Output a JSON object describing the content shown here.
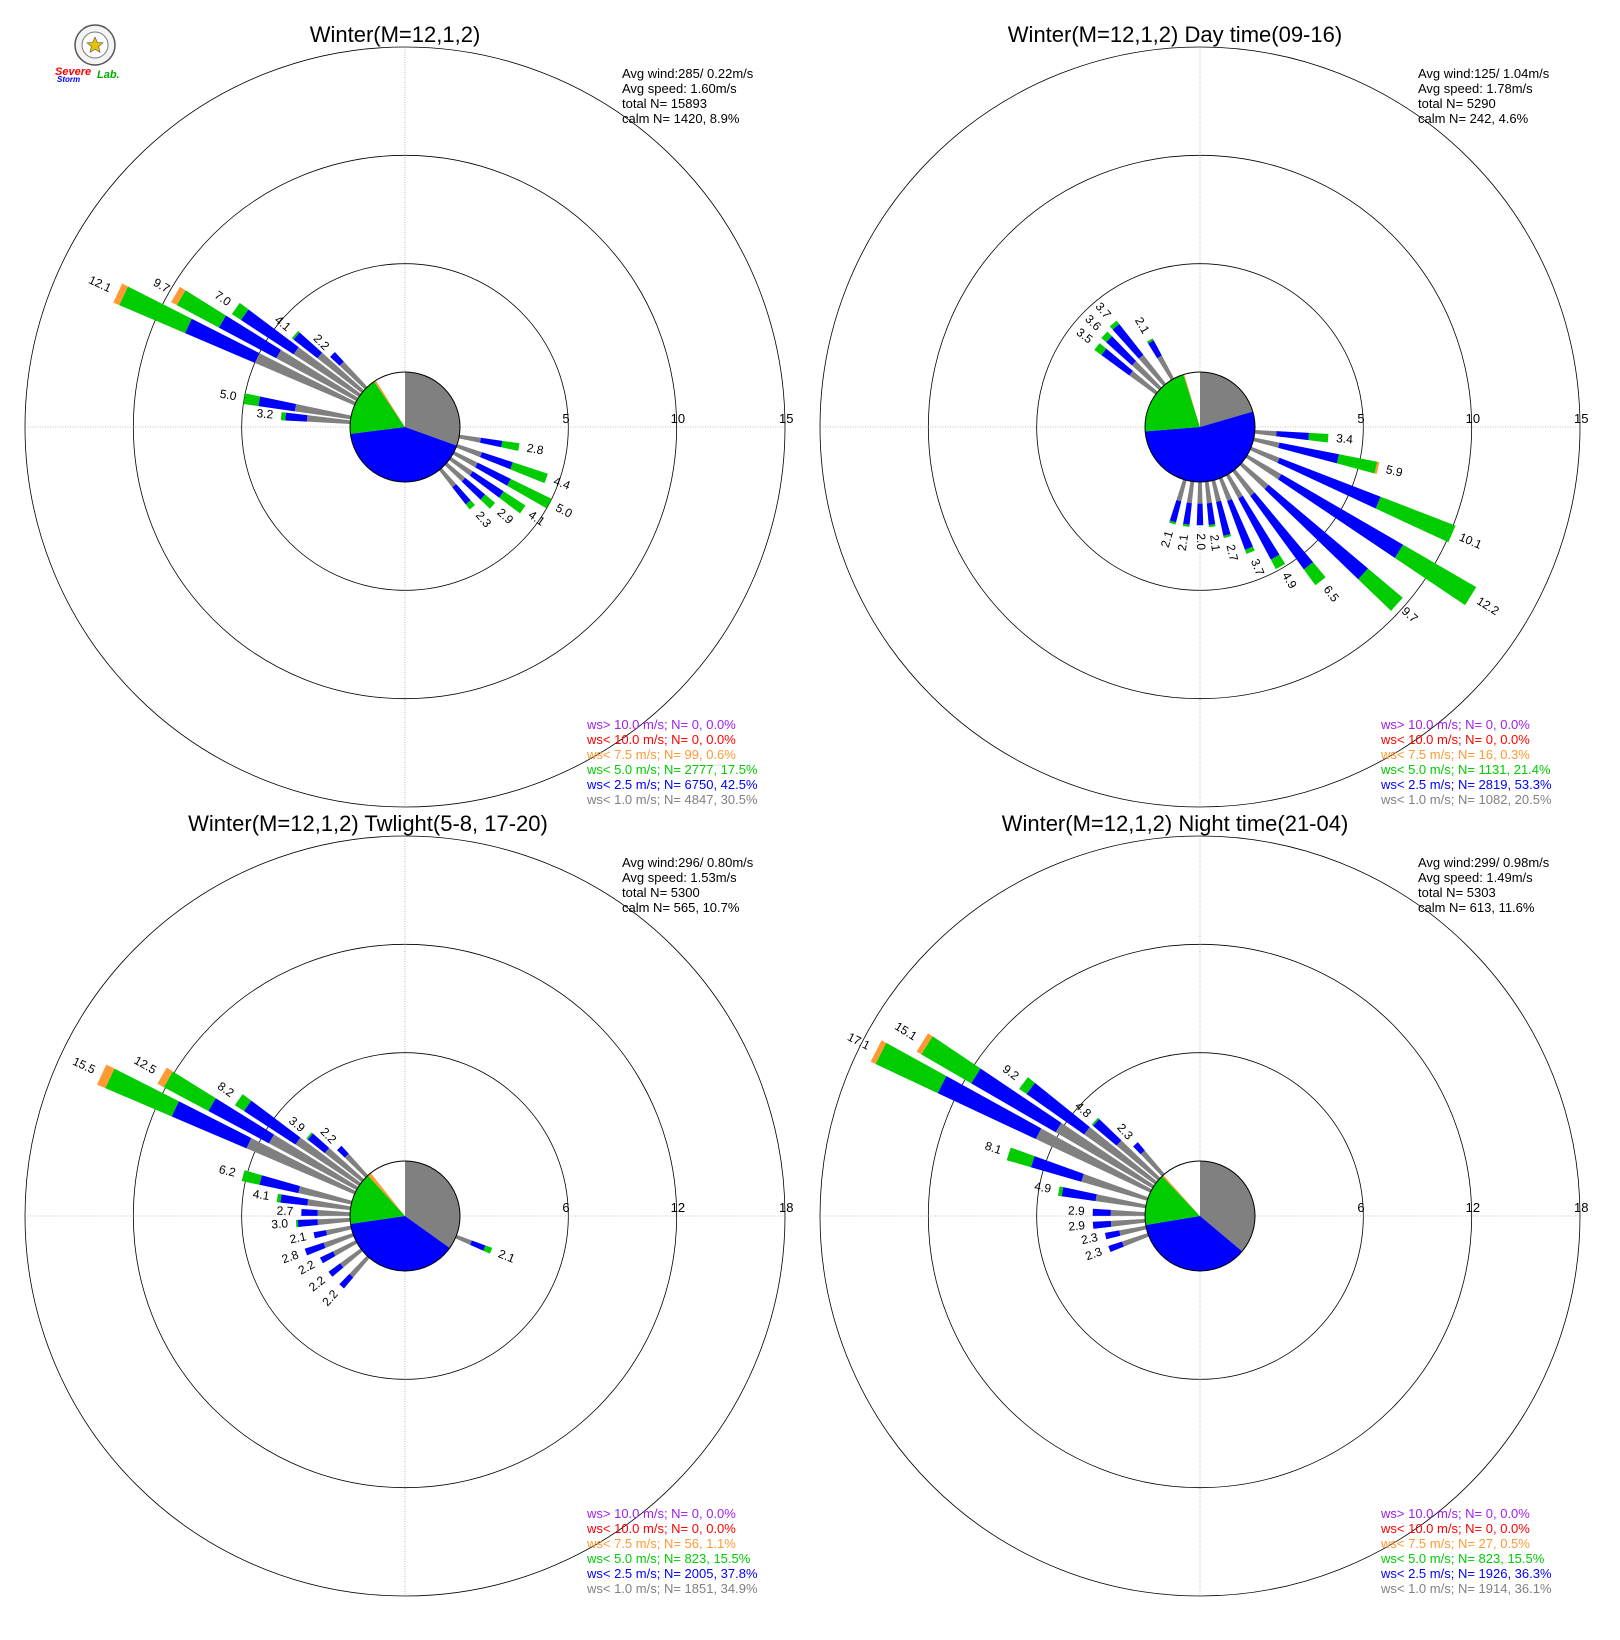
{
  "logo": {
    "line1": "Severe",
    "line2": "Storm",
    "line3": "Lab."
  },
  "colors": {
    "gray": "#808080",
    "blue": "#0000ff",
    "green": "#00cc00",
    "orange": "#ff9933",
    "red": "#ff0000",
    "purple": "#a020f0"
  },
  "chart_data": [
    {
      "type": "polar-bar",
      "title": "Winter(M=12,1,2)",
      "rlim": [
        0,
        15
      ],
      "rticks": [
        5,
        10,
        15
      ],
      "stats": {
        "avg_wind": "Avg wind:285/ 0.22m/s",
        "avg_speed": "Avg speed: 1.60m/s",
        "total": "total N=       15893",
        "calm": "calm N=   1420,   8.9%"
      },
      "legend": [
        "ws> 10.0 m/s; N=     0,  0.0%",
        "ws< 10.0 m/s; N=     0,  0.0%",
        "ws<  7.5 m/s; N=    99,  0.6%",
        "ws<  5.0 m/s; N=  2777, 17.5%",
        "ws<  2.5 m/s; N=  6750, 42.5%",
        "ws<  1.0 m/s; N=  4847, 30.5%"
      ],
      "pie": [
        30.5,
        42.5,
        17.5,
        0.6,
        0.0,
        8.9
      ],
      "directions": [
        {
          "deg": 295,
          "total": 12.1,
          "parts": [
            5.0,
            3.5,
            3.3,
            0.3
          ]
        },
        {
          "deg": 300,
          "total": 9.7,
          "parts": [
            4.2,
            3.0,
            2.2,
            0.3
          ]
        },
        {
          "deg": 305,
          "total": 7.0,
          "parts": [
            3.6,
            2.9,
            0.5,
            0.0
          ]
        },
        {
          "deg": 310,
          "total": 4.1,
          "parts": [
            2.6,
            1.4,
            0.1,
            0.0
          ]
        },
        {
          "deg": 315,
          "total": 2.2,
          "parts": [
            1.6,
            0.6,
            0.0,
            0.0
          ]
        },
        {
          "deg": 280,
          "total": 5.0,
          "parts": [
            2.6,
            1.7,
            0.7,
            0.0
          ]
        },
        {
          "deg": 275,
          "total": 3.2,
          "parts": [
            2.0,
            1.0,
            0.2,
            0.0
          ]
        },
        {
          "deg": 100,
          "total": 2.8,
          "parts": [
            1.0,
            1.0,
            0.8,
            0.0
          ]
        },
        {
          "deg": 110,
          "total": 4.4,
          "parts": [
            1.2,
            1.5,
            1.7,
            0.0
          ]
        },
        {
          "deg": 118,
          "total": 5.0,
          "parts": [
            1.2,
            1.7,
            2.1,
            0.0
          ]
        },
        {
          "deg": 125,
          "total": 4.1,
          "parts": [
            1.2,
            1.7,
            1.2,
            0.0
          ]
        },
        {
          "deg": 132,
          "total": 2.9,
          "parts": [
            1.1,
            1.2,
            0.6,
            0.0
          ]
        },
        {
          "deg": 140,
          "total": 2.3,
          "parts": [
            1.0,
            1.0,
            0.3,
            0.0
          ]
        }
      ]
    },
    {
      "type": "polar-bar",
      "title": "Winter(M=12,1,2) Day time(09-16)",
      "rlim": [
        0,
        15
      ],
      "rticks": [
        5,
        10,
        15
      ],
      "stats": {
        "avg_wind": "Avg wind:125/ 1.04m/s",
        "avg_speed": "Avg speed: 1.78m/s",
        "total": "total N=       5290",
        "calm": "calm N=    242,   4.6%"
      },
      "legend": [
        "ws> 10.0 m/s; N=     0,  0.0%",
        "ws< 10.0 m/s; N=     0,  0.0%",
        "ws<  7.5 m/s; N=    16,  0.3%",
        "ws<  5.0 m/s; N=  1131, 21.4%",
        "ws<  2.5 m/s; N=  2819, 53.3%",
        "ws<  1.0 m/s; N=  1082, 20.5%"
      ],
      "pie": [
        20.5,
        53.3,
        21.4,
        0.3,
        0.0,
        4.6
      ],
      "directions": [
        {
          "deg": 95,
          "total": 3.4,
          "parts": [
            1.0,
            1.5,
            0.9,
            0.0
          ]
        },
        {
          "deg": 103,
          "total": 5.9,
          "parts": [
            1.2,
            2.8,
            1.8,
            0.1
          ]
        },
        {
          "deg": 113,
          "total": 10.1,
          "parts": [
            1.4,
            5.0,
            3.7,
            0.0
          ]
        },
        {
          "deg": 122,
          "total": 12.2,
          "parts": [
            1.8,
            6.5,
            3.9,
            0.0
          ]
        },
        {
          "deg": 132,
          "total": 9.7,
          "parts": [
            1.6,
            6.0,
            2.1,
            0.0
          ]
        },
        {
          "deg": 142,
          "total": 6.5,
          "parts": [
            1.4,
            4.2,
            0.9,
            0.0
          ]
        },
        {
          "deg": 150,
          "total": 4.9,
          "parts": [
            1.2,
            3.2,
            0.5,
            0.0
          ]
        },
        {
          "deg": 158,
          "total": 3.7,
          "parts": [
            1.1,
            2.4,
            0.2,
            0.0
          ]
        },
        {
          "deg": 166,
          "total": 2.7,
          "parts": [
            1.0,
            1.6,
            0.1,
            0.0
          ]
        },
        {
          "deg": 173,
          "total": 2.1,
          "parts": [
            1.0,
            1.0,
            0.1,
            0.0
          ]
        },
        {
          "deg": 180,
          "total": 2.0,
          "parts": [
            1.0,
            1.0,
            0.0,
            0.0
          ]
        },
        {
          "deg": 188,
          "total": 2.1,
          "parts": [
            1.0,
            1.0,
            0.1,
            0.0
          ]
        },
        {
          "deg": 196,
          "total": 2.1,
          "parts": [
            1.0,
            1.0,
            0.1,
            0.0
          ]
        },
        {
          "deg": 320,
          "total": 3.7,
          "parts": [
            1.7,
            1.8,
            0.2,
            0.0
          ]
        },
        {
          "deg": 314,
          "total": 3.6,
          "parts": [
            1.7,
            1.6,
            0.3,
            0.0
          ]
        },
        {
          "deg": 308,
          "total": 3.5,
          "parts": [
            1.5,
            1.6,
            0.4,
            0.0
          ]
        },
        {
          "deg": 330,
          "total": 2.1,
          "parts": [
            1.2,
            0.8,
            0.1,
            0.0
          ]
        }
      ]
    },
    {
      "type": "polar-bar",
      "title": "Winter(M=12,1,2) Twlight(5-8, 17-20)",
      "rlim": [
        0,
        18
      ],
      "rticks": [
        6,
        12,
        18
      ],
      "stats": {
        "avg_wind": "Avg wind:296/ 0.80m/s",
        "avg_speed": "Avg speed: 1.53m/s",
        "total": "total N=       5300",
        "calm": "calm N=    565,  10.7%"
      },
      "legend": [
        "ws> 10.0 m/s; N=     0,  0.0%",
        "ws< 10.0 m/s; N=     0,  0.0%",
        "ws<  7.5 m/s; N=    56,  1.1%",
        "ws<  5.0 m/s; N=   823, 15.5%",
        "ws<  2.5 m/s; N=  2005, 37.8%",
        "ws<  1.0 m/s; N=  1851, 34.9%"
      ],
      "pie": [
        34.9,
        37.8,
        15.5,
        1.1,
        0.0,
        10.7
      ],
      "directions": [
        {
          "deg": 295,
          "total": 15.5,
          "parts": [
            6.5,
            4.5,
            4.0,
            0.5
          ]
        },
        {
          "deg": 300,
          "total": 12.5,
          "parts": [
            5.5,
            3.8,
            2.8,
            0.4
          ]
        },
        {
          "deg": 305,
          "total": 8.2,
          "parts": [
            4.2,
            3.4,
            0.6,
            0.0
          ]
        },
        {
          "deg": 310,
          "total": 3.9,
          "parts": [
            2.6,
            1.2,
            0.1,
            0.0
          ]
        },
        {
          "deg": 316,
          "total": 2.2,
          "parts": [
            1.6,
            0.6,
            0.0,
            0.0
          ]
        },
        {
          "deg": 284,
          "total": 6.2,
          "parts": [
            3.0,
            2.2,
            1.0,
            0.0
          ]
        },
        {
          "deg": 278,
          "total": 4.1,
          "parts": [
            2.4,
            1.5,
            0.2,
            0.0
          ]
        },
        {
          "deg": 272,
          "total": 2.7,
          "parts": [
            1.8,
            0.9,
            0.0,
            0.0
          ]
        },
        {
          "deg": 266,
          "total": 3.0,
          "parts": [
            1.8,
            1.1,
            0.1,
            0.0
          ]
        },
        {
          "deg": 258,
          "total": 2.1,
          "parts": [
            1.4,
            0.7,
            0.0,
            0.0
          ]
        },
        {
          "deg": 250,
          "total": 2.8,
          "parts": [
            1.7,
            1.1,
            0.0,
            0.0
          ]
        },
        {
          "deg": 242,
          "total": 2.2,
          "parts": [
            1.4,
            0.8,
            0.0,
            0.0
          ]
        },
        {
          "deg": 232,
          "total": 2.2,
          "parts": [
            1.4,
            0.8,
            0.0,
            0.0
          ]
        },
        {
          "deg": 222,
          "total": 2.2,
          "parts": [
            1.4,
            0.8,
            0.0,
            0.0
          ]
        },
        {
          "deg": 112,
          "total": 2.1,
          "parts": [
            0.9,
            0.8,
            0.4,
            0.0
          ]
        }
      ]
    },
    {
      "type": "polar-bar",
      "title": "Winter(M=12,1,2) Night time(21-04)",
      "rlim": [
        0,
        18
      ],
      "rticks": [
        6,
        12,
        18
      ],
      "stats": {
        "avg_wind": "Avg wind:299/ 0.98m/s",
        "avg_speed": "Avg speed: 1.49m/s",
        "total": "total N=       5303",
        "calm": "calm N=    613,  11.6%"
      },
      "legend": [
        "ws> 10.0 m/s; N=     0,  0.0%",
        "ws< 10.0 m/s; N=     0,  0.0%",
        "ws<  7.5 m/s; N=    27,  0.5%",
        "ws<  5.0 m/s; N=   823, 15.5%",
        "ws<  2.5 m/s; N=  1926, 36.3%",
        "ws<  1.0 m/s; N=  1914, 36.1%"
      ],
      "pie": [
        36.1,
        36.3,
        15.5,
        0.5,
        0.0,
        11.6
      ],
      "directions": [
        {
          "deg": 297,
          "total": 17.1,
          "parts": [
            7.0,
            6.0,
            3.8,
            0.3
          ]
        },
        {
          "deg": 302,
          "total": 15.1,
          "parts": [
            6.2,
            5.4,
            3.2,
            0.3
          ]
        },
        {
          "deg": 307,
          "total": 9.2,
          "parts": [
            4.8,
            3.9,
            0.5,
            0.0
          ]
        },
        {
          "deg": 312,
          "total": 4.8,
          "parts": [
            3.0,
            1.7,
            0.1,
            0.0
          ]
        },
        {
          "deg": 318,
          "total": 2.3,
          "parts": [
            1.7,
            0.6,
            0.0,
            0.0
          ]
        },
        {
          "deg": 288,
          "total": 8.1,
          "parts": [
            3.8,
            2.9,
            1.4,
            0.0
          ]
        },
        {
          "deg": 280,
          "total": 4.9,
          "parts": [
            2.8,
            1.9,
            0.2,
            0.0
          ]
        },
        {
          "deg": 272,
          "total": 2.9,
          "parts": [
            1.9,
            1.0,
            0.0,
            0.0
          ]
        },
        {
          "deg": 265,
          "total": 2.9,
          "parts": [
            1.9,
            1.0,
            0.0,
            0.0
          ]
        },
        {
          "deg": 258,
          "total": 2.3,
          "parts": [
            1.5,
            0.8,
            0.0,
            0.0
          ]
        },
        {
          "deg": 250,
          "total": 2.3,
          "parts": [
            1.5,
            0.8,
            0.0,
            0.0
          ]
        }
      ]
    }
  ]
}
